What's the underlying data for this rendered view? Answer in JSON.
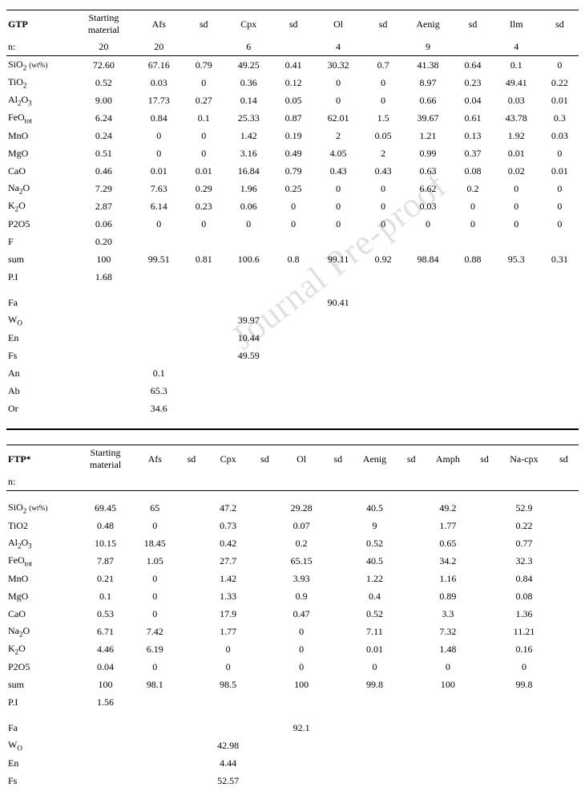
{
  "watermark": "Journal Pre-proof",
  "table1": {
    "title": "GTP",
    "headers": [
      "Starting material",
      "Afs",
      "sd",
      "Cpx",
      "sd",
      "Ol",
      "sd",
      "Aenig",
      "sd",
      "Ilm",
      "sd"
    ],
    "n_label": "n:",
    "n_values": [
      "20",
      "20",
      "",
      "6",
      "",
      "4",
      "",
      "9",
      "",
      "4",
      ""
    ],
    "rows": [
      {
        "label": "SiO2_wt",
        "values": [
          "72.60",
          "67.16",
          "0.79",
          "49.25",
          "0.41",
          "30.32",
          "0.7",
          "41.38",
          "0.64",
          "0.1",
          "0"
        ]
      },
      {
        "label": "TiO2",
        "values": [
          "0.52",
          "0.03",
          "0",
          "0.36",
          "0.12",
          "0",
          "0",
          "8.97",
          "0.23",
          "49.41",
          "0.22"
        ]
      },
      {
        "label": "Al2O3",
        "values": [
          "9.00",
          "17.73",
          "0.27",
          "0.14",
          "0.05",
          "0",
          "0",
          "0.66",
          "0.04",
          "0.03",
          "0.01"
        ]
      },
      {
        "label": "FeOtot",
        "values": [
          "6.24",
          "0.84",
          "0.1",
          "25.33",
          "0.87",
          "62.01",
          "1.5",
          "39.67",
          "0.61",
          "43.78",
          "0.3"
        ]
      },
      {
        "label": "MnO",
        "values": [
          "0.24",
          "0",
          "0",
          "1.42",
          "0.19",
          "2",
          "0.05",
          "1.21",
          "0.13",
          "1.92",
          "0.03"
        ]
      },
      {
        "label": "MgO",
        "values": [
          "0.51",
          "0",
          "0",
          "3.16",
          "0.49",
          "4.05",
          "2",
          "0.99",
          "0.37",
          "0.01",
          "0"
        ]
      },
      {
        "label": "CaO",
        "values": [
          "0.46",
          "0.01",
          "0.01",
          "16.84",
          "0.79",
          "0.43",
          "0.43",
          "0.63",
          "0.08",
          "0.02",
          "0.01"
        ]
      },
      {
        "label": "Na2O",
        "values": [
          "7.29",
          "7.63",
          "0.29",
          "1.96",
          "0.25",
          "0",
          "0",
          "6.62",
          "0.2",
          "0",
          "0"
        ]
      },
      {
        "label": "K2O",
        "values": [
          "2.87",
          "6.14",
          "0.23",
          "0.06",
          "0",
          "0",
          "0",
          "0.03",
          "0",
          "0",
          "0"
        ]
      },
      {
        "label": "P2O5",
        "values": [
          "0.06",
          "0",
          "0",
          "0",
          "0",
          "0",
          "0",
          "0",
          "0",
          "0",
          "0"
        ]
      },
      {
        "label": "F",
        "values": [
          "0.20",
          "",
          "",
          "",
          "",
          "",
          "",
          "",
          "",
          "",
          ""
        ]
      },
      {
        "label": "sum",
        "values": [
          "100",
          "99.51",
          "0.81",
          "100.6",
          "0.8",
          "99.11",
          "0.92",
          "98.84",
          "0.88",
          "95.3",
          "0.31"
        ]
      },
      {
        "label": "P.I",
        "values": [
          "1.68",
          "",
          "",
          "",
          "",
          "",
          "",
          "",
          "",
          "",
          ""
        ]
      }
    ],
    "extras": [
      {
        "label": "Fa",
        "values": [
          "",
          "",
          "",
          "",
          "",
          "90.41",
          "",
          "",
          "",
          "",
          ""
        ]
      },
      {
        "label": "WO",
        "values": [
          "",
          "",
          "",
          "39.97",
          "",
          "",
          "",
          "",
          "",
          "",
          ""
        ]
      },
      {
        "label": "En",
        "values": [
          "",
          "",
          "",
          "10.44",
          "",
          "",
          "",
          "",
          "",
          "",
          ""
        ]
      },
      {
        "label": "Fs",
        "values": [
          "",
          "",
          "",
          "49.59",
          "",
          "",
          "",
          "",
          "",
          "",
          ""
        ]
      },
      {
        "label": "An",
        "values": [
          "",
          "0.1",
          "",
          "",
          "",
          "",
          "",
          "",
          "",
          "",
          ""
        ]
      },
      {
        "label": "Ab",
        "values": [
          "",
          "65.3",
          "",
          "",
          "",
          "",
          "",
          "",
          "",
          "",
          ""
        ]
      },
      {
        "label": "Or",
        "values": [
          "",
          "34.6",
          "",
          "",
          "",
          "",
          "",
          "",
          "",
          "",
          ""
        ]
      }
    ]
  },
  "table2": {
    "title": "FTP*",
    "headers": [
      "Starting material",
      "Afs",
      "sd",
      "Cpx",
      "sd",
      "Ol",
      "sd",
      "Aenig",
      "sd",
      "Amph",
      "sd",
      "Na-cpx",
      "sd"
    ],
    "n_label": "n:",
    "rows": [
      {
        "label": "SiO2_wt",
        "values": [
          "69.45",
          "65",
          "",
          "47.2",
          "",
          "29.28",
          "",
          "40.5",
          "",
          "49.2",
          "",
          "52.9",
          ""
        ]
      },
      {
        "label": "TiO2_plain",
        "values": [
          "0.48",
          "0",
          "",
          "0.73",
          "",
          "0.07",
          "",
          "9",
          "",
          "1.77",
          "",
          "0.22",
          ""
        ]
      },
      {
        "label": "Al2O3",
        "values": [
          "10.15",
          "18.45",
          "",
          "0.42",
          "",
          "0.2",
          "",
          "0.52",
          "",
          "0.65",
          "",
          "0.77",
          ""
        ]
      },
      {
        "label": "FeOtot",
        "values": [
          "7.87",
          "1.05",
          "",
          "27.7",
          "",
          "65.15",
          "",
          "40.5",
          "",
          "34.2",
          "",
          "32.3",
          ""
        ]
      },
      {
        "label": "MnO",
        "values": [
          "0.21",
          "0",
          "",
          "1.42",
          "",
          "3.93",
          "",
          "1.22",
          "",
          "1.16",
          "",
          "0.84",
          ""
        ]
      },
      {
        "label": "MgO",
        "values": [
          "0.1",
          "0",
          "",
          "1.33",
          "",
          "0.9",
          "",
          "0.4",
          "",
          "0.89",
          "",
          "0.08",
          ""
        ]
      },
      {
        "label": "CaO",
        "values": [
          "0.53",
          "0",
          "",
          "17.9",
          "",
          "0.47",
          "",
          "0.52",
          "",
          "3.3",
          "",
          "1.36",
          ""
        ]
      },
      {
        "label": "Na2O",
        "values": [
          "6.71",
          "7.42",
          "",
          "1.77",
          "",
          "0",
          "",
          "7.11",
          "",
          "7.32",
          "",
          "11.21",
          ""
        ]
      },
      {
        "label": "K2O",
        "values": [
          "4.46",
          "6.19",
          "",
          "0",
          "",
          "0",
          "",
          "0.01",
          "",
          "1.48",
          "",
          "0.16",
          ""
        ]
      },
      {
        "label": "P2O5",
        "values": [
          "0.04",
          "0",
          "",
          "0",
          "",
          "0",
          "",
          "0",
          "",
          "0",
          "",
          "0",
          ""
        ]
      },
      {
        "label": "sum",
        "values": [
          "100",
          "98.1",
          "",
          "98.5",
          "",
          "100",
          "",
          "99.8",
          "",
          "100",
          "",
          "99.8",
          ""
        ]
      },
      {
        "label": "P.I",
        "values": [
          "1.56",
          "",
          "",
          "",
          "",
          "",
          "",
          "",
          "",
          "",
          "",
          "",
          ""
        ]
      }
    ],
    "extras": [
      {
        "label": "Fa",
        "values": [
          "",
          "",
          "",
          "",
          "",
          "92.1",
          "",
          "",
          "",
          "",
          "",
          "",
          ""
        ]
      },
      {
        "label": "WO",
        "values": [
          "",
          "",
          "",
          "42.98",
          "",
          "",
          "",
          "",
          "",
          "",
          "",
          "",
          ""
        ]
      },
      {
        "label": "En",
        "values": [
          "",
          "",
          "",
          "4.44",
          "",
          "",
          "",
          "",
          "",
          "",
          "",
          "",
          ""
        ]
      },
      {
        "label": "Fs",
        "values": [
          "",
          "",
          "",
          "52.57",
          "",
          "",
          "",
          "",
          "",
          "",
          "",
          "",
          ""
        ]
      }
    ]
  },
  "labels": {
    "SiO2_wt": "SiO<sub>2</sub> <span class='wt'>(wt%)</span>",
    "TiO2": "TiO<sub>2</sub>",
    "TiO2_plain": "TiO2",
    "Al2O3": "Al<sub>2</sub>O<sub>3</sub>",
    "FeOtot": "FeO<sub>tot</sub>",
    "MnO": "MnO",
    "MgO": "MgO",
    "CaO": "CaO",
    "Na2O": "Na<sub>2</sub>O",
    "K2O": "K<sub>2</sub>O",
    "P2O5": "P2O5",
    "F": "F",
    "sum": "sum",
    "P.I": "P.I",
    "Fa": "Fa",
    "WO": "W<sub>O</sub>",
    "En": "En",
    "Fs": "Fs",
    "An": "An",
    "Ab": "Ab",
    "Or": "Or"
  },
  "col_widths": {
    "table1": [
      72,
      62,
      55,
      40,
      55,
      40,
      55,
      40,
      55,
      40,
      52,
      40
    ],
    "table2": [
      72,
      56,
      44,
      30,
      44,
      30,
      44,
      30,
      44,
      30,
      44,
      30,
      50,
      30
    ]
  }
}
